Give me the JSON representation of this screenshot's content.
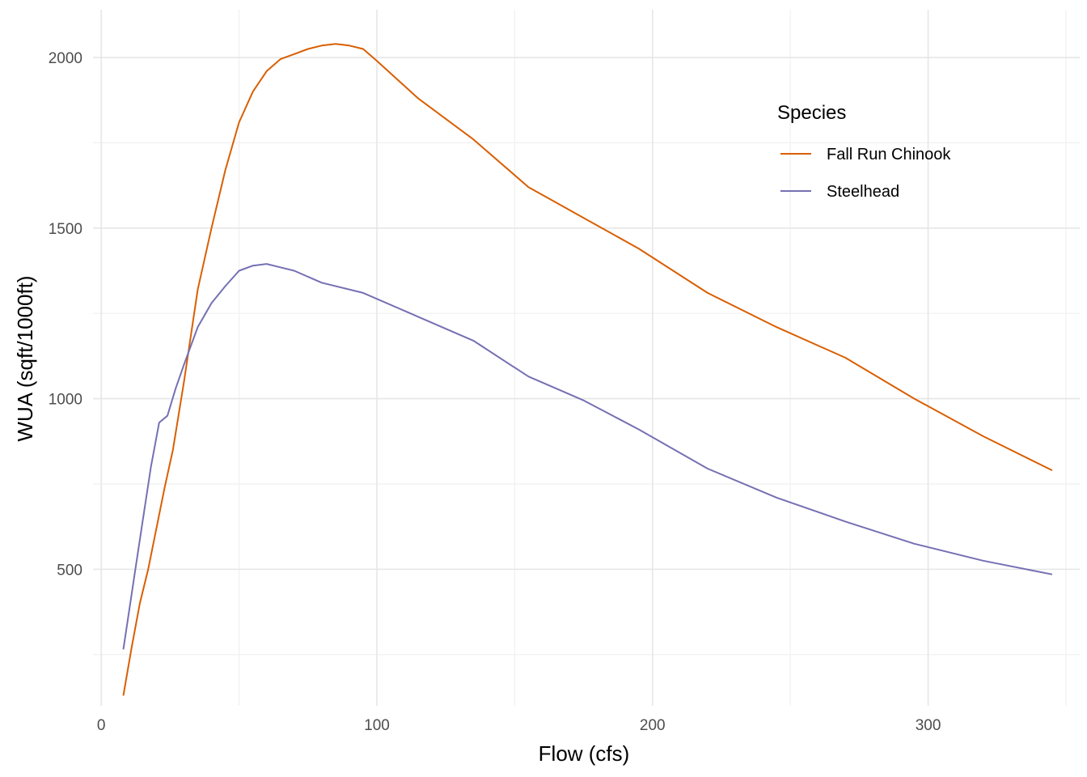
{
  "chart_data": {
    "type": "line",
    "title": "",
    "xlabel": "Flow (cfs)",
    "ylabel": "WUA (sqft/1000ft)",
    "xlim": [
      -3,
      355
    ],
    "ylim": [
      100,
      2140
    ],
    "x_ticks": [
      0,
      100,
      200,
      300
    ],
    "x_tick_labels": [
      "0",
      "100",
      "200",
      "300"
    ],
    "y_ticks": [
      500,
      1000,
      1500,
      2000
    ],
    "y_tick_labels": [
      "500",
      "1000",
      "1500",
      "2000"
    ],
    "grid": true,
    "legend": {
      "title": "Species",
      "position": "top-right"
    },
    "series": [
      {
        "name": "Fall Run Chinook",
        "color": "#D95F02",
        "x": [
          8,
          11,
          14,
          17,
          20,
          23,
          26,
          30,
          35,
          40,
          45,
          50,
          55,
          60,
          65,
          70,
          75,
          80,
          85,
          90,
          95,
          100,
          115,
          135,
          155,
          175,
          195,
          220,
          245,
          270,
          295,
          320,
          345
        ],
        "y": [
          130,
          270,
          400,
          500,
          620,
          740,
          850,
          1050,
          1320,
          1500,
          1670,
          1810,
          1900,
          1960,
          1995,
          2010,
          2025,
          2035,
          2040,
          2035,
          2025,
          1990,
          1880,
          1760,
          1620,
          1530,
          1440,
          1310,
          1210,
          1120,
          1000,
          890,
          790
        ]
      },
      {
        "name": "Steelhead",
        "color": "#7570B3",
        "x": [
          8,
          12,
          15,
          18,
          21,
          24,
          27,
          30,
          35,
          40,
          45,
          50,
          55,
          60,
          65,
          70,
          80,
          95,
          115,
          135,
          155,
          175,
          195,
          220,
          245,
          270,
          295,
          320,
          345
        ],
        "y": [
          265,
          480,
          640,
          800,
          930,
          950,
          1030,
          1100,
          1210,
          1280,
          1330,
          1375,
          1390,
          1395,
          1385,
          1375,
          1340,
          1310,
          1240,
          1170,
          1065,
          995,
          910,
          795,
          710,
          640,
          575,
          525,
          485
        ]
      }
    ]
  }
}
